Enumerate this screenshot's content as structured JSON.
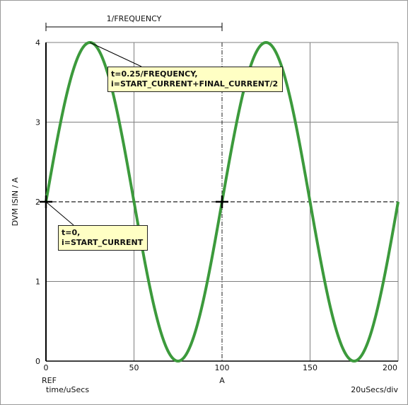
{
  "chart_data": {
    "type": "line",
    "title": "",
    "xlabel": "time/uSecs",
    "ylabel": "DVM ISIN / A",
    "xlim": [
      0,
      200
    ],
    "ylim": [
      0,
      4
    ],
    "x_ticks": [
      "0",
      "50",
      "100",
      "150",
      "200"
    ],
    "y_ticks": [
      "0",
      "1",
      "2",
      "3",
      "4"
    ],
    "grid": true,
    "x_scale_label": "20uSecs/div",
    "ref_label": "REF",
    "cursor_label": "A",
    "cursor_x": 100,
    "series": [
      {
        "color": "#3c9a3c",
        "x": [
          0,
          12.5,
          25,
          37.5,
          50,
          62.5,
          75,
          87.5,
          100,
          112.5,
          125,
          137.5,
          150,
          162.5,
          175,
          187.5,
          200
        ],
        "y": [
          2,
          3.414,
          4,
          3.414,
          2,
          0.586,
          0,
          0.586,
          2,
          3.414,
          4,
          3.414,
          2,
          0.586,
          0,
          0.586,
          2
        ]
      }
    ],
    "annotations": {
      "period": "1/FREQUENCY",
      "quarter_line1": "t=0.25/FREQUENCY,",
      "quarter_line2": "i=START_CURRENT+FINAL_CURRENT/2",
      "start_line1": "t=0,",
      "start_line2": "i=START_CURRENT"
    }
  }
}
